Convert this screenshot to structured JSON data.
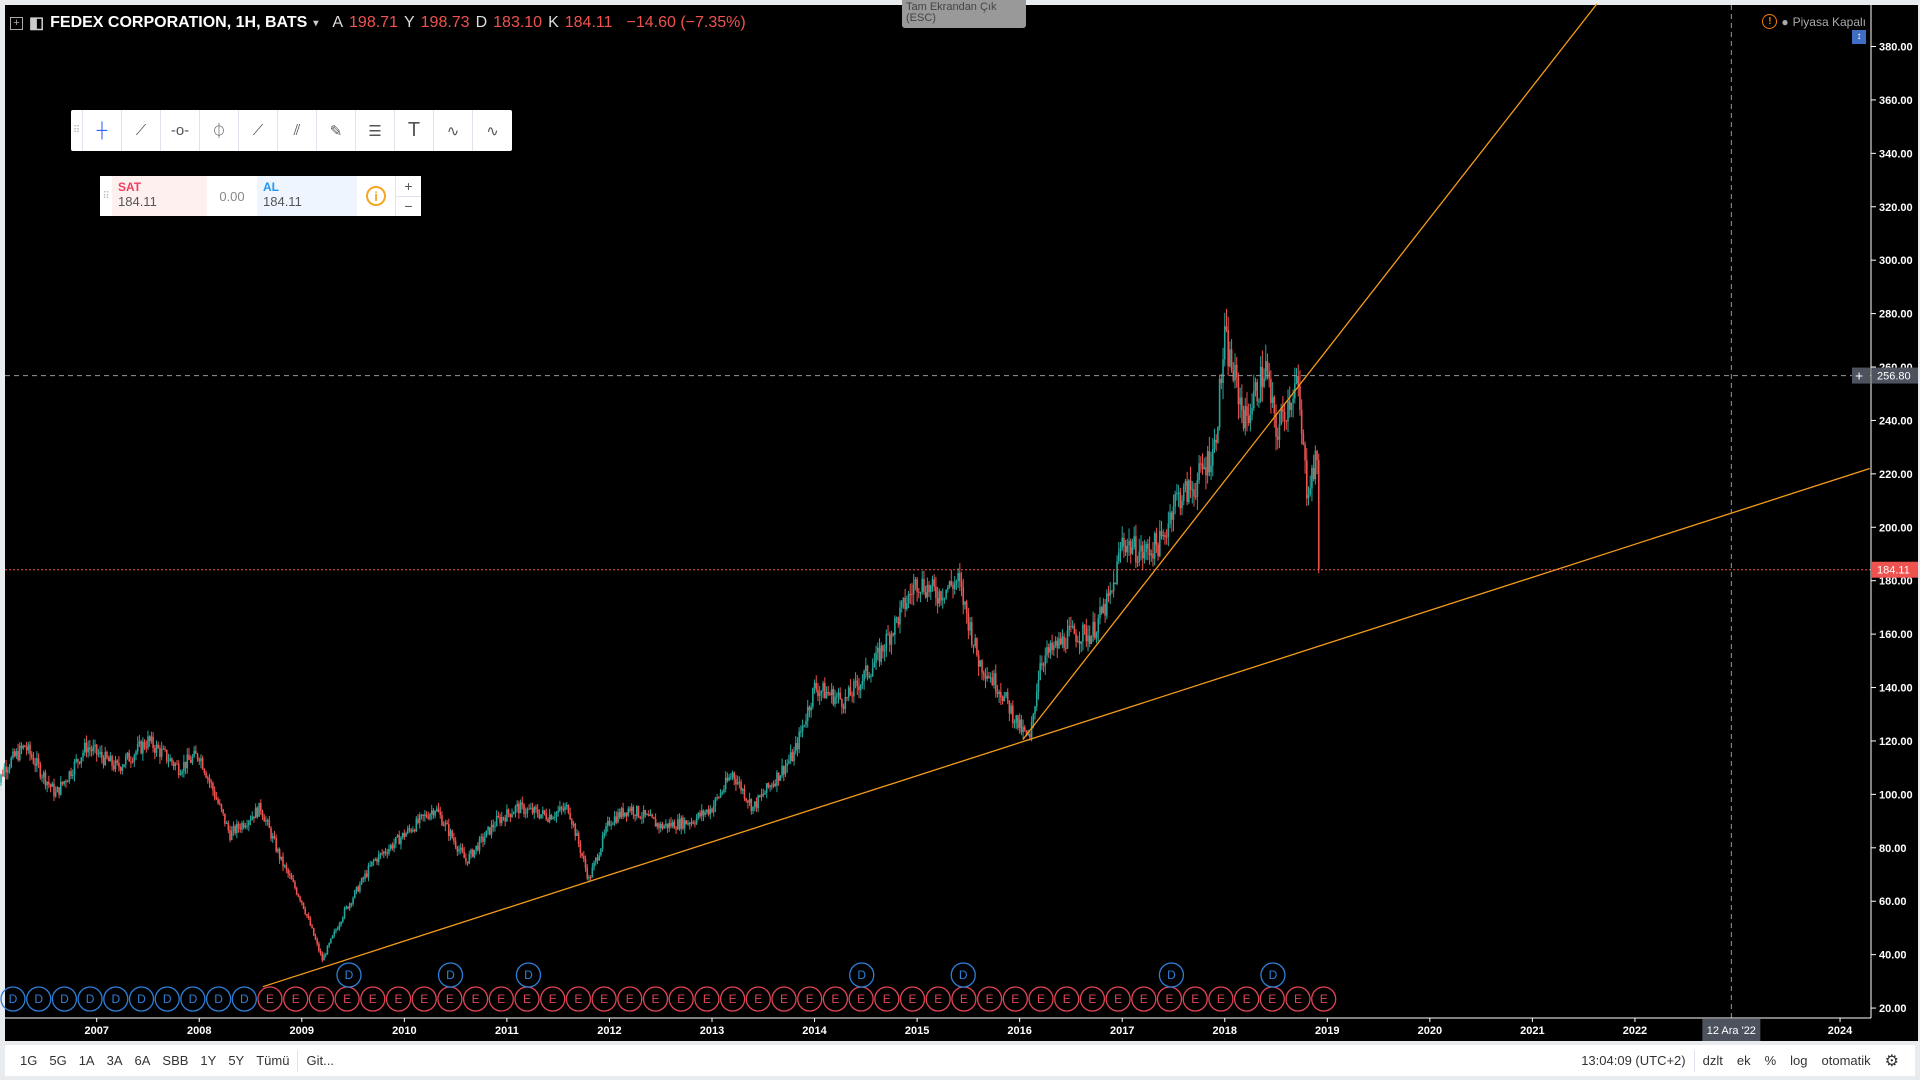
{
  "header": {
    "symbol": "FEDEX CORPORATION, 1H, BATS",
    "open_label": "A",
    "open": "198.71",
    "high_label": "Y",
    "high": "198.73",
    "low_label": "D",
    "low": "183.10",
    "close_label": "K",
    "close": "184.11",
    "change": "−14.60 (−7.35%)"
  },
  "exit_fullscreen": "Tam Ekrandan Çık (ESC)",
  "market_status": "Piyasa Kapalı",
  "drawing_tools": [
    "crosshair-icon",
    "trend-line-icon",
    "horizontal-line-icon",
    "vertical-line-icon",
    "ray-icon",
    "parallel-channel-icon",
    "brush-icon",
    "fib-retracement-icon",
    "text-icon",
    "elliott-wave-icon",
    "abcd-pattern-icon"
  ],
  "trade": {
    "sell_label": "SAT",
    "sell_price": "184.11",
    "spread": "0.00",
    "buy_label": "AL",
    "buy_price": "184.11",
    "plus": "+",
    "minus": "−"
  },
  "bottom": {
    "ranges": [
      "1G",
      "5G",
      "1A",
      "3A",
      "6A",
      "SBB",
      "1Y",
      "5Y",
      "Tümü"
    ],
    "goto": "Git...",
    "time": "13:04:09 (UTC+2)",
    "options": [
      "dzlt",
      "ek",
      "%",
      "log",
      "otomatik"
    ]
  },
  "colors": {
    "up": "#26a69a",
    "down": "#ef5350",
    "trendline": "#f59b1b",
    "dividend": "#2e7fd9",
    "earnings": "#e04555"
  },
  "chart_data": {
    "type": "candlestick",
    "price_axis": {
      "min": 20,
      "max": 380,
      "ticks": [
        "20.00",
        "40.00",
        "60.00",
        "80.00",
        "100.00",
        "120.00",
        "140.00",
        "160.00",
        "180.00",
        "200.00",
        "220.00",
        "240.00",
        "260.00",
        "280.00",
        "300.00",
        "320.00",
        "340.00",
        "360.00",
        "380.00"
      ]
    },
    "time_axis": {
      "ticks": [
        "2007",
        "2008",
        "2009",
        "2010",
        "2011",
        "2012",
        "2013",
        "2014",
        "2015",
        "2016",
        "2017",
        "2018",
        "2019",
        "2020",
        "2021",
        "2022",
        "2024"
      ],
      "cursor_label": "12 Ara '22",
      "cursor_date": 2022.94
    },
    "crosshair_price": "256.80",
    "last_price": "184.11",
    "closes": [
      [
        2006.0,
        100
      ],
      [
        2006.1,
        110
      ],
      [
        2006.3,
        118
      ],
      [
        2006.6,
        100
      ],
      [
        2006.9,
        118
      ],
      [
        2007.2,
        110
      ],
      [
        2007.5,
        120
      ],
      [
        2007.8,
        110
      ],
      [
        2008.0,
        115
      ],
      [
        2008.3,
        85
      ],
      [
        2008.6,
        95
      ],
      [
        2008.8,
        75
      ],
      [
        2009.0,
        60
      ],
      [
        2009.2,
        38
      ],
      [
        2009.4,
        55
      ],
      [
        2009.7,
        75
      ],
      [
        2010.0,
        85
      ],
      [
        2010.3,
        95
      ],
      [
        2010.6,
        75
      ],
      [
        2010.9,
        90
      ],
      [
        2011.1,
        95
      ],
      [
        2011.4,
        92
      ],
      [
        2011.6,
        95
      ],
      [
        2011.8,
        68
      ],
      [
        2012.0,
        90
      ],
      [
        2012.2,
        95
      ],
      [
        2012.5,
        88
      ],
      [
        2012.8,
        90
      ],
      [
        2013.0,
        95
      ],
      [
        2013.2,
        108
      ],
      [
        2013.4,
        95
      ],
      [
        2013.6,
        105
      ],
      [
        2013.8,
        115
      ],
      [
        2014.0,
        140
      ],
      [
        2014.3,
        135
      ],
      [
        2014.6,
        150
      ],
      [
        2014.8,
        165
      ],
      [
        2015.0,
        180
      ],
      [
        2015.2,
        175
      ],
      [
        2015.4,
        180
      ],
      [
        2015.6,
        150
      ],
      [
        2015.8,
        140
      ],
      [
        2016.0,
        125
      ],
      [
        2016.1,
        120
      ],
      [
        2016.2,
        150
      ],
      [
        2016.5,
        160
      ],
      [
        2016.7,
        160
      ],
      [
        2016.9,
        175
      ],
      [
        2017.0,
        195
      ],
      [
        2017.2,
        190
      ],
      [
        2017.4,
        195
      ],
      [
        2017.5,
        210
      ],
      [
        2017.7,
        215
      ],
      [
        2017.9,
        230
      ],
      [
        2018.0,
        270
      ],
      [
        2018.2,
        240
      ],
      [
        2018.4,
        260
      ],
      [
        2018.5,
        235
      ],
      [
        2018.7,
        255
      ],
      [
        2018.8,
        215
      ],
      [
        2018.9,
        225
      ],
      [
        2018.92,
        184.11
      ]
    ],
    "trendlines": [
      [
        [
          2008.62,
          28
        ],
        [
          2024.29,
          222
        ]
      ],
      [
        [
          2016.03,
          120.5
        ],
        [
          2021.63,
          396
        ]
      ]
    ],
    "events_bottom_row": [
      "D",
      "D",
      "D",
      "D",
      "D",
      "D",
      "D",
      "D",
      "D",
      "D",
      "E",
      "E",
      "E",
      "E",
      "E",
      "E",
      "E",
      "E",
      "E",
      "E",
      "E",
      "E",
      "E",
      "E",
      "E",
      "E",
      "E",
      "E",
      "E",
      "E",
      "E",
      "E",
      "E",
      "E",
      "E",
      "E",
      "E",
      "E",
      "E",
      "E",
      "E",
      "E",
      "E",
      "E",
      "E",
      "E",
      "E",
      "E",
      "E",
      "E",
      "E",
      "E"
    ],
    "dividends_upper": [
      2009.46,
      2010.45,
      2011.21,
      2014.46,
      2015.45,
      2017.48,
      2018.47
    ],
    "dividend_label": "D"
  }
}
